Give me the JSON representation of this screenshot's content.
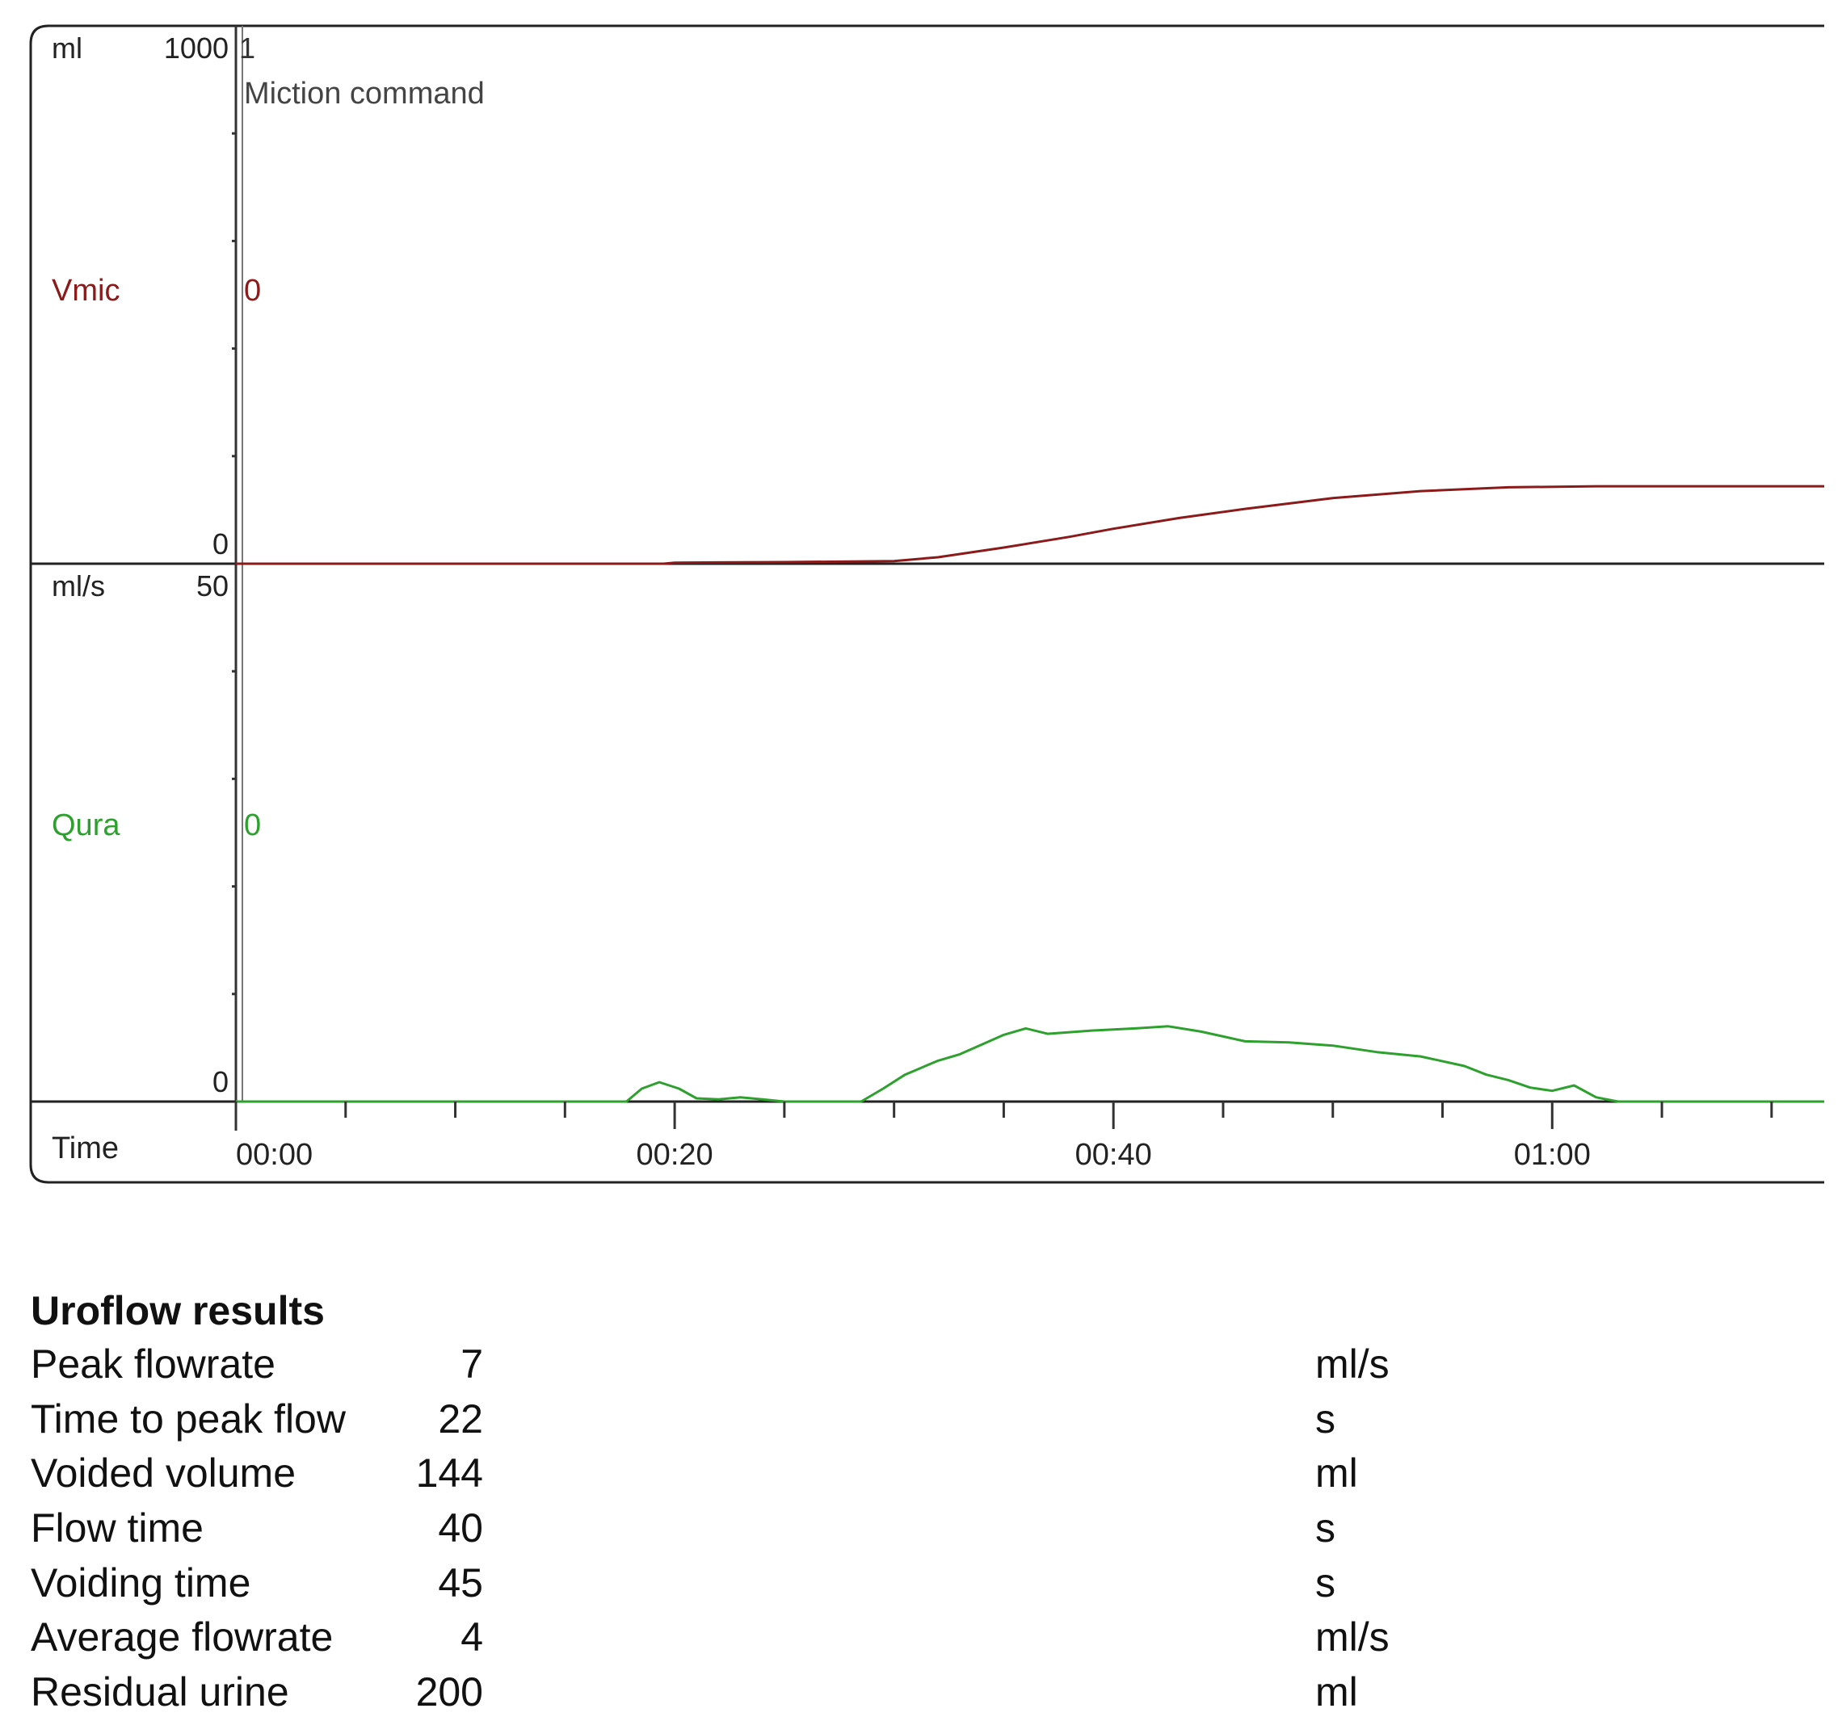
{
  "chart_data": {
    "type": "line",
    "x_unit": "s",
    "panels": [
      {
        "name": "Vmic",
        "unit": "ml",
        "axis_max_label": "1000",
        "axis_zero_label": "0",
        "ylim": [
          0,
          1000
        ],
        "color": "#8b1a1a",
        "series": [
          {
            "name": "Vmic",
            "x": [
              0,
              19.5,
              20,
              25,
              30,
              32,
              35,
              38,
              40,
              43,
              46,
              50,
              54,
              58,
              62,
              66,
              72.4
            ],
            "y": [
              0,
              0,
              2,
              3,
              5,
              12,
              30,
              50,
              65,
              85,
              102,
              122,
              135,
              142,
              144,
              144,
              144
            ]
          }
        ]
      },
      {
        "name": "Qura",
        "unit": "ml/s",
        "axis_max_label": "50",
        "axis_zero_label": "0",
        "ylim": [
          0,
          50
        ],
        "color": "#2ea02e",
        "series": [
          {
            "name": "Qura",
            "x": [
              0,
              17.8,
              18.5,
              19.3,
              20.2,
              21,
              22,
              23,
              24,
              25,
              26,
              28.5,
              29.5,
              30.5,
              32,
              33,
              34,
              35,
              36,
              37,
              39,
              41,
              42.5,
              44,
              46,
              48,
              50,
              52,
              54,
              56,
              57,
              58,
              59,
              60,
              61,
              62,
              63,
              72.4
            ],
            "y": [
              0,
              0,
              1.2,
              1.8,
              1.2,
              0.3,
              0.2,
              0.4,
              0.2,
              0,
              0,
              0,
              1.2,
              2.5,
              3.8,
              4.4,
              5.3,
              6.2,
              6.8,
              6.3,
              6.6,
              6.8,
              7,
              6.5,
              5.6,
              5.5,
              5.2,
              4.6,
              4.2,
              3.3,
              2.5,
              2.0,
              1.3,
              1.0,
              1.5,
              0.4,
              0,
              0
            ]
          }
        ]
      }
    ],
    "x_ticks": [
      "00:00",
      "00:20",
      "00:40",
      "01:00"
    ],
    "x_tick_values": [
      0,
      20,
      40,
      60
    ],
    "xlim": [
      0,
      72.4
    ],
    "event_marker": {
      "x": 0,
      "number": "1",
      "label": "Miction command"
    },
    "bottom_axis_label": "Time"
  },
  "results": {
    "title": "Uroflow results",
    "rows": [
      {
        "label": "Peak flowrate",
        "value": "7",
        "unit": "ml/s"
      },
      {
        "label": "Time to peak flow",
        "value": "22",
        "unit": "s"
      },
      {
        "label": "Voided volume",
        "value": "144",
        "unit": "ml"
      },
      {
        "label": "Flow time",
        "value": "40",
        "unit": "s"
      },
      {
        "label": "Voiding time",
        "value": "45",
        "unit": "s"
      },
      {
        "label": "Average flowrate",
        "value": "4",
        "unit": "ml/s"
      },
      {
        "label": "Residual urine",
        "value": "200",
        "unit": "ml"
      }
    ]
  }
}
